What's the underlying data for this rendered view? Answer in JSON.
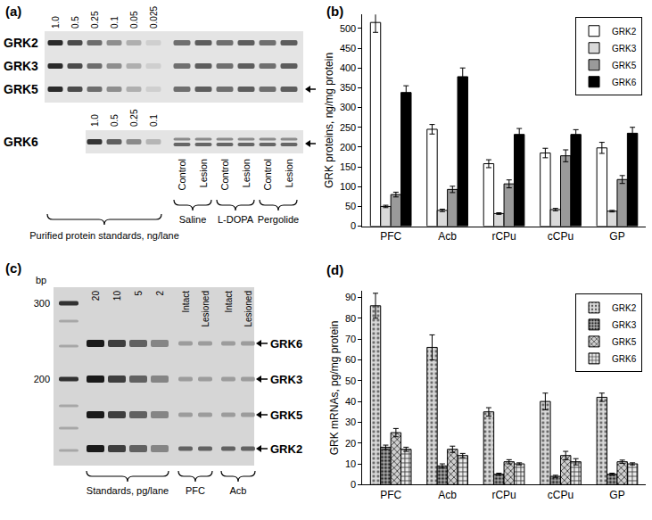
{
  "chart_data": [
    {
      "type": "bar",
      "title": "(b)",
      "y_label": "GRK proteins, ng/mg protein",
      "categories": [
        "PFC",
        "Acb",
        "rCPu",
        "cCPu",
        "GP"
      ],
      "series": [
        {
          "name": "GRK2",
          "color": "#ffffff",
          "values": [
            515,
            245,
            158,
            185,
            198
          ],
          "errors": [
            25,
            12,
            10,
            12,
            14
          ]
        },
        {
          "name": "GRK3",
          "color": "#d9d9d9",
          "values": [
            50,
            40,
            32,
            42,
            38
          ],
          "errors": [
            3,
            3,
            2,
            3,
            2
          ]
        },
        {
          "name": "GRK5",
          "color": "#9a9a9a",
          "values": [
            80,
            93,
            107,
            178,
            118
          ],
          "errors": [
            6,
            8,
            10,
            15,
            10
          ]
        },
        {
          "name": "GRK6",
          "color": "#000000",
          "values": [
            338,
            378,
            232,
            232,
            235
          ],
          "errors": [
            17,
            22,
            15,
            12,
            15
          ]
        }
      ],
      "ylim": [
        0,
        535
      ],
      "yticks": [
        0,
        50,
        100,
        150,
        200,
        250,
        300,
        350,
        400,
        450,
        500
      ],
      "grid": false,
      "legend": "upper right"
    },
    {
      "type": "bar",
      "title": "(d)",
      "y_label": "GRK mRNAs, pg/mg protein",
      "categories": [
        "PFC",
        "Acb",
        "rCPu",
        "cCPu",
        "GP"
      ],
      "series": [
        {
          "name": "GRK2",
          "color": "#d8d8d8",
          "marker": "dots",
          "values": [
            86,
            66,
            35,
            40,
            42
          ],
          "errors": [
            6,
            6,
            2,
            4,
            2
          ]
        },
        {
          "name": "GRK3",
          "color": "#b0b0b0",
          "marker": "dense-dots",
          "values": [
            18,
            9,
            5,
            4,
            5
          ],
          "errors": [
            1,
            1,
            0.5,
            0.5,
            0.5
          ]
        },
        {
          "name": "GRK5",
          "color": "#cfcfcf",
          "marker": "crosses",
          "values": [
            25,
            17,
            11,
            14,
            11
          ],
          "errors": [
            2,
            1.5,
            1,
            2,
            0.8
          ]
        },
        {
          "name": "GRK6",
          "color": "#e8e8e8",
          "marker": "grid",
          "values": [
            17,
            14,
            10,
            11,
            10
          ],
          "errors": [
            1,
            1,
            0.5,
            1.5,
            0.5
          ]
        }
      ],
      "ylim": [
        0,
        93
      ],
      "yticks": [
        0,
        10,
        20,
        30,
        40,
        50,
        60,
        70,
        80,
        90
      ],
      "grid": false,
      "legend": "upper right"
    }
  ],
  "blots": {
    "a": {
      "title": "(a)",
      "rows": [
        "GRK2",
        "GRK3",
        "GRK5"
      ],
      "grk6_row": "GRK6",
      "standards": [
        "1.0",
        "0.5",
        "0.25",
        "0.1",
        "0.05",
        "0.025"
      ],
      "grk6_standards": [
        "1.0",
        "0.5",
        "0.25",
        "0.1"
      ],
      "lanes": [
        "Control",
        "Lesion",
        "Control",
        "Lesion",
        "Control",
        "Lesion"
      ],
      "treatments": [
        "Saline",
        "L-DOPA",
        "Pergolide"
      ],
      "standards_caption": "Purified protein standards, ng/lane"
    },
    "c": {
      "title": "(c)",
      "size_unit": "bp",
      "markers": [
        300,
        200
      ],
      "standards": [
        20,
        10,
        5,
        2
      ],
      "lanes": [
        "Intact",
        "Lesioned",
        "Intact",
        "Lesioned"
      ],
      "regions": [
        "PFC",
        "Acb"
      ],
      "bands": [
        "GRK6",
        "GRK3",
        "GRK5",
        "GRK2"
      ],
      "standards_caption": "Standards, pg/lane"
    }
  }
}
